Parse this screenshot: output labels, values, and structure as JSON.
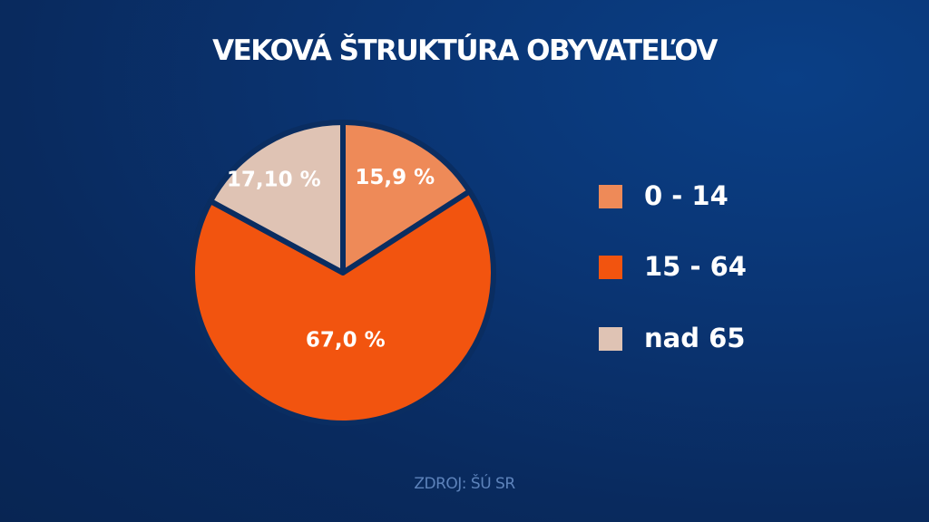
{
  "title": "VEKOVÁ ŠTRUKTÚRA OBYVATEĽOV",
  "source": "ZDROJ: ŠÚ SR",
  "chart_data": {
    "type": "pie",
    "title": "VEKOVÁ ŠTRUKTÚRA OBYVATEĽOV",
    "slices": [
      {
        "label": "0 - 14",
        "value": 15.9,
        "display": "15,9 %",
        "color": "#ee8a58"
      },
      {
        "label": "15 - 64",
        "value": 67.0,
        "display": "67,0 %",
        "color": "#f2540f"
      },
      {
        "label": "nad 65",
        "value": 17.1,
        "display": "17,10 %",
        "color": "#dfc3b4"
      }
    ],
    "legend_position": "right"
  },
  "colors": {
    "background": "#092a5e",
    "separator": "#0a2d61",
    "source_text": "#5d83bb"
  }
}
